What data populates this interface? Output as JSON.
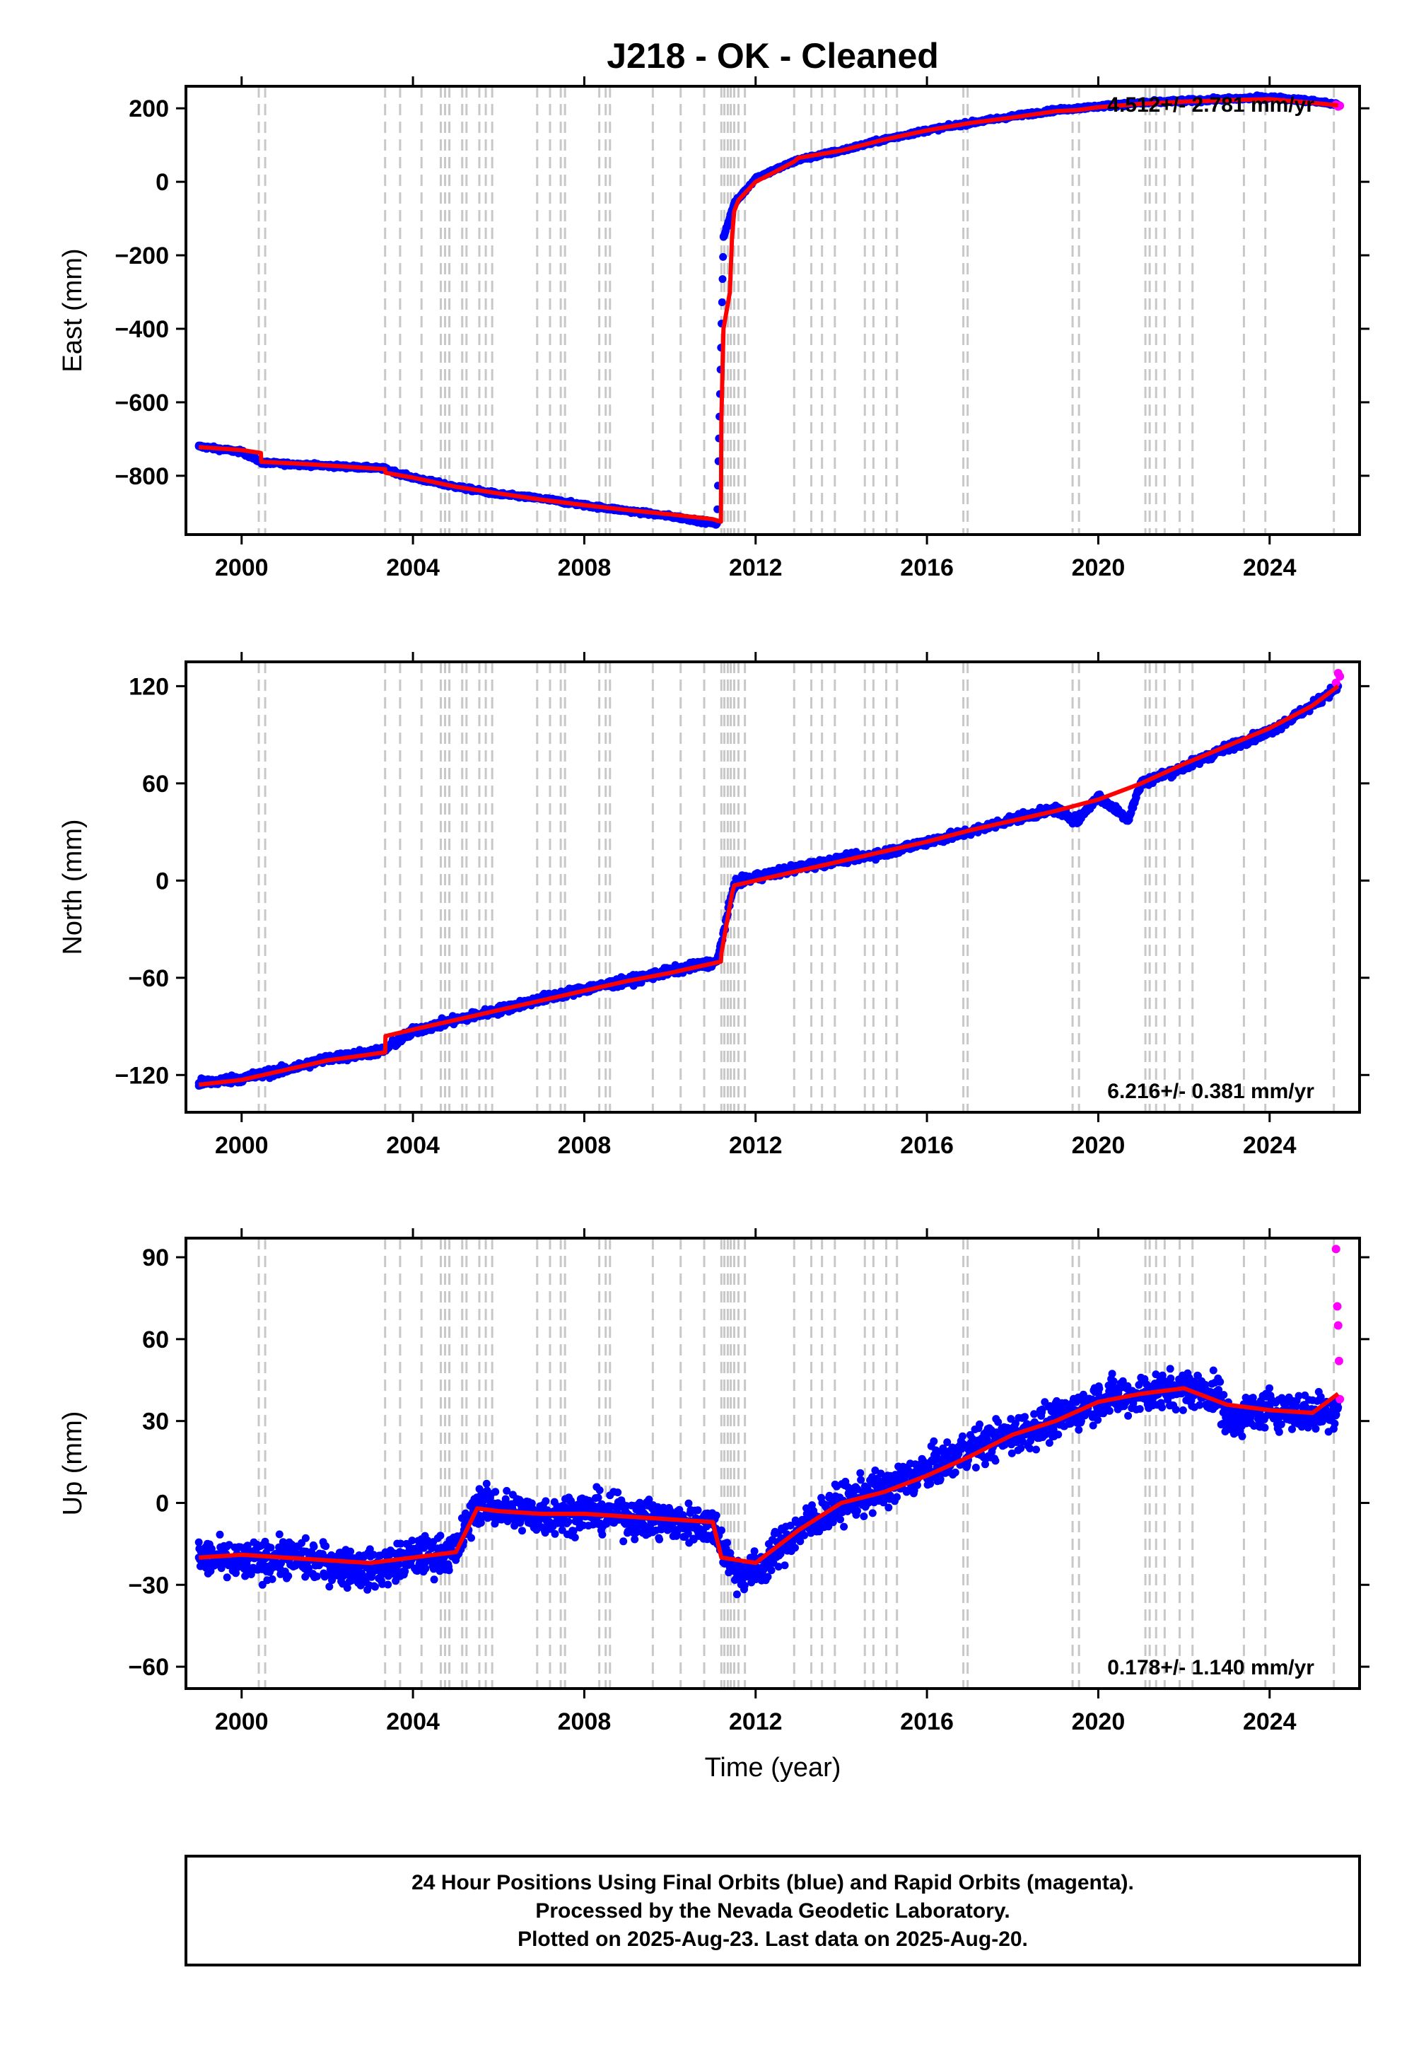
{
  "title": "J218  - OK - Cleaned",
  "colors": {
    "final": "#0000ff",
    "rapid": "#ff00ff",
    "model": "#ff0000",
    "event_lines": "#c8c8c8"
  },
  "xaxis": {
    "label": "Time (year)",
    "range": [
      1998.7,
      2026.1
    ],
    "ticks": [
      2000,
      2004,
      2008,
      2012,
      2016,
      2020,
      2024
    ],
    "tick_labels": [
      "2000",
      "2004",
      "2008",
      "2012",
      "2016",
      "2020",
      "2024"
    ]
  },
  "caption": {
    "line1": "24 Hour Positions Using Final Orbits (blue) and Rapid Orbits (magenta).",
    "line2": "Processed by the Nevada Geodetic Laboratory.",
    "line3": "Plotted on 2025-Aug-23. Last data on 2025-Aug-20."
  },
  "chart_data": [
    {
      "type": "scatter",
      "panel": "east",
      "ylabel": "East (mm)",
      "ylim": [
        -960,
        260
      ],
      "yticks": [
        200,
        0,
        -200,
        -400,
        -600,
        -800
      ],
      "ytick_labels": [
        "200",
        "0",
        "−200",
        "−400",
        "−600",
        "−800"
      ],
      "rate_text": "4.512+/- 2.781 mm/yr",
      "rate_position": "top-right",
      "series": [
        {
          "name": "Final Orbits",
          "color": "#0000ff",
          "style": "dots",
          "x": [
            1999.0,
            2000.0,
            2000.5,
            2001.5,
            2003.3,
            2004.0,
            2005.0,
            2006.0,
            2007.0,
            2008.0,
            2009.0,
            2010.0,
            2011.1,
            2011.25,
            2011.5,
            2012.0,
            2013.0,
            2014.0,
            2015.0,
            2016.0,
            2017.0,
            2018.0,
            2019.0,
            2020.0,
            2021.0,
            2022.0,
            2023.0,
            2024.0,
            2025.0,
            2025.6
          ],
          "y": [
            -720,
            -735,
            -765,
            -770,
            -780,
            -805,
            -830,
            -850,
            -862,
            -880,
            -895,
            -910,
            -930,
            -150,
            -60,
            10,
            60,
            85,
            115,
            140,
            160,
            178,
            195,
            205,
            215,
            220,
            225,
            230,
            220,
            210
          ]
        },
        {
          "name": "Rapid Orbits",
          "color": "#ff00ff",
          "style": "dots",
          "x": [
            2025.55,
            2025.6,
            2025.64
          ],
          "y": [
            210,
            205,
            207
          ]
        },
        {
          "name": "Model",
          "color": "#ff0000",
          "style": "line",
          "x": [
            1999.0,
            2000.0,
            2000.45,
            2000.46,
            2001.5,
            2003.35,
            2003.36,
            2004.0,
            2005.0,
            2006.0,
            2007.0,
            2008.0,
            2009.0,
            2010.0,
            2011.0,
            2011.19,
            2011.2,
            2011.25,
            2011.4,
            2011.45,
            2011.5,
            2011.6,
            2012.0,
            2012.5,
            2012.9,
            2013.0,
            2014.0,
            2015.0,
            2016.0,
            2017.0,
            2018.0,
            2019.0,
            2019.5,
            2020.0,
            2021.0,
            2022.0,
            2023.0,
            2024.0,
            2025.0,
            2025.6
          ],
          "y": [
            -722,
            -730,
            -738,
            -762,
            -768,
            -782,
            -792,
            -805,
            -830,
            -848,
            -865,
            -880,
            -893,
            -905,
            -918,
            -925,
            -650,
            -400,
            -300,
            -150,
            -80,
            -50,
            0,
            30,
            55,
            65,
            85,
            115,
            140,
            160,
            175,
            192,
            195,
            203,
            212,
            218,
            222,
            225,
            215,
            208
          ]
        }
      ]
    },
    {
      "type": "scatter",
      "panel": "north",
      "ylabel": "North (mm)",
      "ylim": [
        -143,
        135
      ],
      "yticks": [
        120,
        60,
        0,
        -60,
        -120
      ],
      "ytick_labels": [
        "120",
        "60",
        "0",
        "−60",
        "−120"
      ],
      "rate_text": "6.216+/- 0.381 mm/yr",
      "rate_position": "bottom-right",
      "series": [
        {
          "name": "Final Orbits",
          "color": "#0000ff",
          "style": "dots",
          "x": [
            1999.0,
            2000.0,
            2001.0,
            2002.0,
            2003.3,
            2004.0,
            2005.0,
            2006.0,
            2007.0,
            2008.0,
            2009.0,
            2010.0,
            2011.1,
            2011.5,
            2012.0,
            2013.0,
            2014.0,
            2015.0,
            2016.0,
            2017.0,
            2018.0,
            2019.0,
            2019.5,
            2020.0,
            2020.7,
            2021.0,
            2022.0,
            2023.0,
            2024.0,
            2025.0,
            2025.6
          ],
          "y": [
            -125,
            -122,
            -117,
            -110,
            -105,
            -93,
            -86,
            -80,
            -73,
            -67,
            -62,
            -56,
            -50,
            -2,
            2,
            8,
            13,
            17,
            24,
            30,
            38,
            44,
            37,
            52,
            38,
            60,
            70,
            82,
            92,
            108,
            120
          ]
        },
        {
          "name": "Rapid Orbits",
          "color": "#ff00ff",
          "style": "dots",
          "x": [
            2025.55,
            2025.6,
            2025.64
          ],
          "y": [
            122,
            128,
            126
          ]
        },
        {
          "name": "Model",
          "color": "#ff0000",
          "style": "line",
          "x": [
            1999.0,
            2000.0,
            2001.0,
            2002.0,
            2003.35,
            2003.36,
            2004.0,
            2005.0,
            2006.0,
            2007.0,
            2008.0,
            2009.0,
            2010.0,
            2011.19,
            2011.2,
            2011.45,
            2011.5,
            2012.0,
            2013.0,
            2014.0,
            2015.0,
            2016.0,
            2017.0,
            2018.0,
            2019.0,
            2020.0,
            2021.0,
            2022.0,
            2023.0,
            2024.0,
            2025.0,
            2025.6
          ],
          "y": [
            -126,
            -123,
            -117,
            -111,
            -106,
            -96,
            -92,
            -86,
            -80,
            -74,
            -68,
            -62,
            -57,
            -50,
            -45,
            -8,
            -3,
            0,
            6,
            12,
            18,
            24,
            31,
            37,
            43,
            50,
            60,
            72,
            83,
            94,
            108,
            120
          ]
        }
      ]
    },
    {
      "type": "scatter",
      "panel": "up",
      "ylabel": "Up (mm)",
      "ylim": [
        -68,
        97
      ],
      "yticks": [
        90,
        60,
        30,
        0,
        -30,
        -60
      ],
      "ytick_labels": [
        "90",
        "60",
        "30",
        "0",
        "−30",
        "−60"
      ],
      "rate_text": "0.178+/- 1.140 mm/yr",
      "rate_position": "bottom-right",
      "series": [
        {
          "name": "Final Orbits",
          "color": "#0000ff",
          "style": "dots",
          "x": [
            1999.0,
            2000.0,
            2001.0,
            2002.0,
            2003.0,
            2004.0,
            2005.0,
            2005.5,
            2006.0,
            2007.0,
            2008.0,
            2009.0,
            2010.0,
            2011.0,
            2011.5,
            2012.0,
            2013.0,
            2014.0,
            2015.0,
            2016.0,
            2017.0,
            2018.0,
            2019.0,
            2020.0,
            2021.0,
            2022.0,
            2022.8,
            2023.0,
            2024.0,
            2025.0,
            2025.6
          ],
          "y": [
            -20,
            -22,
            -20,
            -22,
            -25,
            -20,
            -18,
            0,
            -2,
            -5,
            -3,
            -5,
            -7,
            -8,
            -25,
            -25,
            -10,
            0,
            5,
            12,
            20,
            25,
            30,
            38,
            40,
            42,
            40,
            30,
            35,
            33,
            35
          ]
        },
        {
          "name": "Rapid Orbits",
          "color": "#ff00ff",
          "style": "dots",
          "x": [
            2025.55,
            2025.58,
            2025.6,
            2025.62,
            2025.64
          ],
          "y": [
            93,
            72,
            65,
            52,
            38
          ]
        },
        {
          "name": "Model",
          "color": "#ff0000",
          "style": "line",
          "x": [
            1999.0,
            2000.0,
            2001.0,
            2002.0,
            2003.0,
            2004.0,
            2005.0,
            2005.5,
            2006.0,
            2007.0,
            2008.0,
            2009.0,
            2010.0,
            2011.0,
            2011.2,
            2012.0,
            2013.0,
            2014.0,
            2015.0,
            2016.0,
            2017.0,
            2018.0,
            2019.0,
            2020.0,
            2021.0,
            2022.0,
            2023.0,
            2024.0,
            2025.0,
            2025.6
          ],
          "y": [
            -20,
            -19,
            -20,
            -21,
            -22,
            -20,
            -18,
            -2,
            -3,
            -4,
            -4,
            -5,
            -6,
            -7,
            -20,
            -22,
            -10,
            0,
            4,
            10,
            17,
            25,
            30,
            37,
            40,
            42,
            36,
            34,
            33,
            40
          ]
        }
      ]
    }
  ],
  "event_lines": [
    2000.4,
    2000.55,
    2003.35,
    2003.7,
    2004.2,
    2004.65,
    2004.75,
    2004.85,
    2005.15,
    2005.25,
    2005.55,
    2005.7,
    2005.85,
    2006.9,
    2007.2,
    2007.45,
    2007.55,
    2008.35,
    2008.5,
    2008.6,
    2009.6,
    2010.25,
    2010.8,
    2011.2,
    2011.27,
    2011.35,
    2011.42,
    2011.5,
    2011.6,
    2011.75,
    2012.9,
    2013.3,
    2013.55,
    2013.85,
    2014.55,
    2014.75,
    2015.05,
    2015.3,
    2016.85,
    2016.95,
    2019.4,
    2019.55,
    2021.1,
    2021.2,
    2021.35,
    2021.55,
    2021.9,
    2022.2,
    2023.4,
    2023.9,
    2025.5
  ]
}
